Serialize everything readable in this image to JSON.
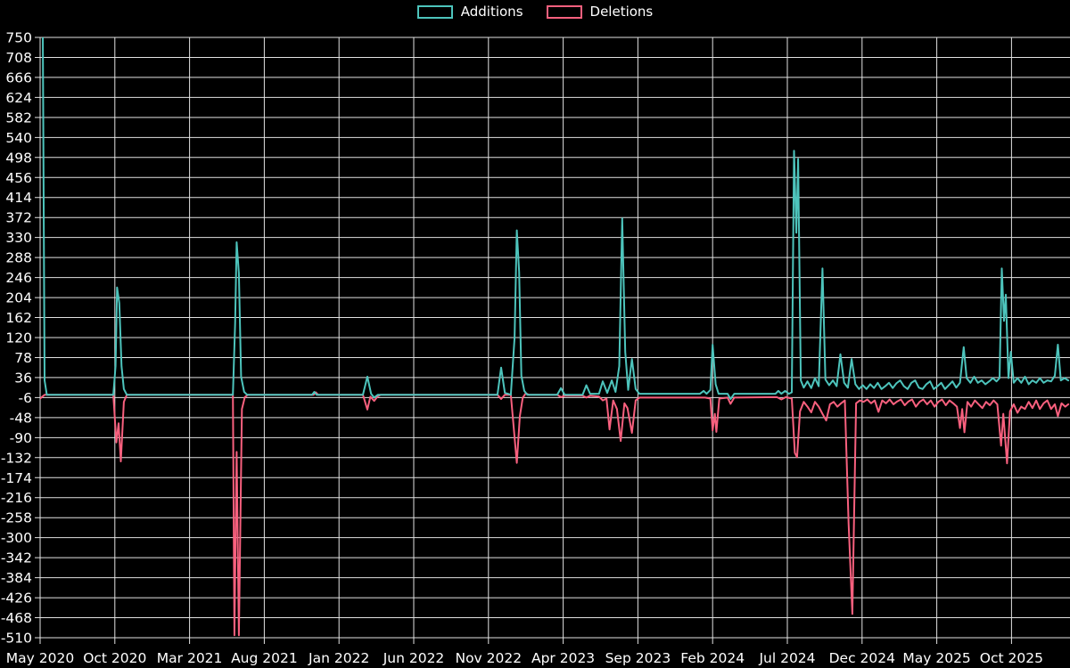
{
  "legend": {
    "items": [
      {
        "label": "Additions",
        "color": "#4dc4bc"
      },
      {
        "label": "Deletions",
        "color": "#f8607e"
      }
    ]
  },
  "chart_data": {
    "type": "line",
    "title": "",
    "xlabel": "",
    "ylabel": "",
    "x_unit": "months since May 2020 (weekly code additions/deletions)",
    "ylim": [
      -510,
      750
    ],
    "xlim_months": [
      0,
      68.9
    ],
    "grid": true,
    "legend_position": "top-center",
    "background_color": "#000000",
    "grid_color": "#e2e2e2",
    "text_color": "#ffffff",
    "y_ticks": [
      750,
      708,
      666,
      624,
      582,
      540,
      498,
      456,
      414,
      372,
      330,
      288,
      246,
      204,
      162,
      120,
      78,
      36,
      -6,
      -48,
      -90,
      -132,
      -174,
      -216,
      -258,
      -300,
      -342,
      -384,
      -426,
      -468,
      -510
    ],
    "x_ticks": [
      {
        "month": 0,
        "label": "May 2020"
      },
      {
        "month": 5,
        "label": "Oct 2020"
      },
      {
        "month": 10,
        "label": "Mar 2021"
      },
      {
        "month": 15,
        "label": "Aug 2021"
      },
      {
        "month": 20,
        "label": "Jan 2022"
      },
      {
        "month": 25,
        "label": "Jun 2022"
      },
      {
        "month": 30,
        "label": "Nov 2022"
      },
      {
        "month": 35,
        "label": "Apr 2023"
      },
      {
        "month": 40,
        "label": "Sep 2023"
      },
      {
        "month": 45,
        "label": "Feb 2024"
      },
      {
        "month": 50,
        "label": "Jul 2024"
      },
      {
        "month": 55,
        "label": "Dec 2024"
      },
      {
        "month": 60,
        "label": "May 2025"
      },
      {
        "month": 65,
        "label": "Oct 2025"
      }
    ],
    "series": [
      {
        "name": "Additions",
        "color": "#4dc4bc",
        "points": [
          [
            0,
            762
          ],
          [
            0.18,
            762
          ],
          [
            0.3,
            30
          ],
          [
            0.45,
            0
          ],
          [
            4.9,
            0
          ],
          [
            5.05,
            60
          ],
          [
            5.15,
            225
          ],
          [
            5.3,
            192
          ],
          [
            5.45,
            60
          ],
          [
            5.6,
            12
          ],
          [
            5.8,
            0
          ],
          [
            12.9,
            0
          ],
          [
            13.05,
            150
          ],
          [
            13.15,
            320
          ],
          [
            13.3,
            255
          ],
          [
            13.45,
            38
          ],
          [
            13.65,
            6
          ],
          [
            13.85,
            0
          ],
          [
            18.2,
            0
          ],
          [
            18.35,
            6
          ],
          [
            18.5,
            0
          ],
          [
            21.6,
            0
          ],
          [
            21.9,
            38
          ],
          [
            22.15,
            2
          ],
          [
            22.35,
            -6
          ],
          [
            22.6,
            0
          ],
          [
            30.6,
            0
          ],
          [
            30.85,
            57
          ],
          [
            31.1,
            4
          ],
          [
            31.5,
            0
          ],
          [
            31.75,
            120
          ],
          [
            31.9,
            345
          ],
          [
            32.05,
            258
          ],
          [
            32.2,
            40
          ],
          [
            32.4,
            8
          ],
          [
            32.6,
            0
          ],
          [
            34.6,
            0
          ],
          [
            34.85,
            14
          ],
          [
            35.1,
            0
          ],
          [
            36.3,
            0
          ],
          [
            36.55,
            20
          ],
          [
            36.8,
            2
          ],
          [
            37.4,
            2
          ],
          [
            37.65,
            28
          ],
          [
            37.95,
            4
          ],
          [
            38.25,
            30
          ],
          [
            38.5,
            6
          ],
          [
            38.75,
            60
          ],
          [
            38.95,
            370
          ],
          [
            39.15,
            90
          ],
          [
            39.35,
            10
          ],
          [
            39.6,
            75
          ],
          [
            39.85,
            12
          ],
          [
            40.1,
            2
          ],
          [
            44.15,
            2
          ],
          [
            44.4,
            8
          ],
          [
            44.6,
            2
          ],
          [
            44.85,
            10
          ],
          [
            45.0,
            105
          ],
          [
            45.2,
            22
          ],
          [
            45.4,
            2
          ],
          [
            46.0,
            2
          ],
          [
            46.2,
            -9
          ],
          [
            46.45,
            2
          ],
          [
            49.2,
            2
          ],
          [
            49.4,
            8
          ],
          [
            49.6,
            2
          ],
          [
            49.85,
            8
          ],
          [
            50.1,
            2
          ],
          [
            50.3,
            5
          ],
          [
            50.45,
            512
          ],
          [
            50.6,
            340
          ],
          [
            50.72,
            495
          ],
          [
            50.9,
            30
          ],
          [
            51.1,
            15
          ],
          [
            51.35,
            28
          ],
          [
            51.6,
            14
          ],
          [
            51.85,
            35
          ],
          [
            52.1,
            18
          ],
          [
            52.35,
            265
          ],
          [
            52.55,
            32
          ],
          [
            52.8,
            20
          ],
          [
            53.05,
            30
          ],
          [
            53.3,
            18
          ],
          [
            53.55,
            85
          ],
          [
            53.8,
            25
          ],
          [
            54.05,
            15
          ],
          [
            54.3,
            75
          ],
          [
            54.55,
            22
          ],
          [
            54.8,
            12
          ],
          [
            55.05,
            20
          ],
          [
            55.3,
            12
          ],
          [
            55.55,
            22
          ],
          [
            55.8,
            14
          ],
          [
            56.05,
            25
          ],
          [
            56.3,
            12
          ],
          [
            56.55,
            18
          ],
          [
            56.8,
            25
          ],
          [
            57.05,
            14
          ],
          [
            57.3,
            24
          ],
          [
            57.55,
            30
          ],
          [
            57.8,
            18
          ],
          [
            58.05,
            12
          ],
          [
            58.3,
            25
          ],
          [
            58.55,
            30
          ],
          [
            58.8,
            15
          ],
          [
            59.05,
            12
          ],
          [
            59.3,
            22
          ],
          [
            59.55,
            28
          ],
          [
            59.8,
            12
          ],
          [
            60.05,
            18
          ],
          [
            60.3,
            25
          ],
          [
            60.55,
            12
          ],
          [
            60.8,
            20
          ],
          [
            61.05,
            28
          ],
          [
            61.3,
            15
          ],
          [
            61.55,
            25
          ],
          [
            61.8,
            100
          ],
          [
            62.0,
            35
          ],
          [
            62.25,
            25
          ],
          [
            62.5,
            38
          ],
          [
            62.75,
            25
          ],
          [
            63.0,
            30
          ],
          [
            63.25,
            22
          ],
          [
            63.5,
            28
          ],
          [
            63.75,
            35
          ],
          [
            64.0,
            28
          ],
          [
            64.2,
            35
          ],
          [
            64.35,
            265
          ],
          [
            64.5,
            155
          ],
          [
            64.62,
            210
          ],
          [
            64.8,
            35
          ],
          [
            64.95,
            90
          ],
          [
            65.15,
            25
          ],
          [
            65.4,
            35
          ],
          [
            65.65,
            25
          ],
          [
            65.9,
            38
          ],
          [
            66.15,
            22
          ],
          [
            66.4,
            30
          ],
          [
            66.65,
            25
          ],
          [
            66.9,
            35
          ],
          [
            67.15,
            25
          ],
          [
            67.4,
            30
          ],
          [
            67.65,
            28
          ],
          [
            67.9,
            40
          ],
          [
            68.1,
            105
          ],
          [
            68.3,
            30
          ],
          [
            68.55,
            35
          ],
          [
            68.8,
            30
          ]
        ]
      },
      {
        "name": "Deletions",
        "color": "#f8607e",
        "points": [
          [
            0,
            -8
          ],
          [
            0.3,
            0
          ],
          [
            4.9,
            0
          ],
          [
            5.1,
            -100
          ],
          [
            5.25,
            -60
          ],
          [
            5.4,
            -140
          ],
          [
            5.6,
            -15
          ],
          [
            5.8,
            0
          ],
          [
            12.9,
            0
          ],
          [
            13.0,
            -505
          ],
          [
            13.15,
            -120
          ],
          [
            13.3,
            -505
          ],
          [
            13.5,
            -30
          ],
          [
            13.7,
            -5
          ],
          [
            13.9,
            0
          ],
          [
            18.3,
            0
          ],
          [
            18.45,
            5
          ],
          [
            18.6,
            0
          ],
          [
            21.6,
            0
          ],
          [
            21.9,
            -31
          ],
          [
            22.1,
            -4
          ],
          [
            22.35,
            -13
          ],
          [
            22.6,
            -3
          ],
          [
            22.8,
            0
          ],
          [
            30.6,
            0
          ],
          [
            30.85,
            -9
          ],
          [
            31.1,
            0
          ],
          [
            31.5,
            0
          ],
          [
            31.9,
            -143
          ],
          [
            32.1,
            -45
          ],
          [
            32.3,
            -6
          ],
          [
            32.5,
            3
          ],
          [
            32.7,
            0
          ],
          [
            34.6,
            0
          ],
          [
            34.85,
            -5
          ],
          [
            35.1,
            -2
          ],
          [
            36.3,
            -2
          ],
          [
            36.55,
            -6
          ],
          [
            36.8,
            -2
          ],
          [
            37.4,
            -4
          ],
          [
            37.65,
            -12
          ],
          [
            37.9,
            -8
          ],
          [
            38.1,
            -73
          ],
          [
            38.35,
            -12
          ],
          [
            38.6,
            -30
          ],
          [
            38.85,
            -97
          ],
          [
            39.1,
            -18
          ],
          [
            39.3,
            -28
          ],
          [
            39.6,
            -80
          ],
          [
            39.85,
            -12
          ],
          [
            40.1,
            -6
          ],
          [
            44.5,
            -6
          ],
          [
            44.85,
            -8
          ],
          [
            45.0,
            -75
          ],
          [
            45.15,
            -40
          ],
          [
            45.25,
            -78
          ],
          [
            45.45,
            -8
          ],
          [
            46.0,
            -6
          ],
          [
            46.2,
            -19
          ],
          [
            46.45,
            -6
          ],
          [
            49.3,
            -5
          ],
          [
            49.6,
            -10
          ],
          [
            49.9,
            -5
          ],
          [
            50.3,
            -8
          ],
          [
            50.5,
            -122
          ],
          [
            50.65,
            -131
          ],
          [
            50.85,
            -35
          ],
          [
            51.1,
            -15
          ],
          [
            51.35,
            -25
          ],
          [
            51.6,
            -37
          ],
          [
            51.85,
            -15
          ],
          [
            52.1,
            -25
          ],
          [
            52.35,
            -40
          ],
          [
            52.6,
            -54
          ],
          [
            52.85,
            -20
          ],
          [
            53.1,
            -15
          ],
          [
            53.35,
            -25
          ],
          [
            53.6,
            -18
          ],
          [
            53.85,
            -12
          ],
          [
            54.1,
            -270
          ],
          [
            54.35,
            -460
          ],
          [
            54.6,
            -18
          ],
          [
            54.85,
            -12
          ],
          [
            55.1,
            -15
          ],
          [
            55.35,
            -10
          ],
          [
            55.6,
            -18
          ],
          [
            55.85,
            -12
          ],
          [
            56.1,
            -36
          ],
          [
            56.35,
            -12
          ],
          [
            56.6,
            -18
          ],
          [
            56.85,
            -10
          ],
          [
            57.1,
            -20
          ],
          [
            57.35,
            -14
          ],
          [
            57.6,
            -10
          ],
          [
            57.85,
            -22
          ],
          [
            58.1,
            -14
          ],
          [
            58.35,
            -10
          ],
          [
            58.6,
            -25
          ],
          [
            58.85,
            -15
          ],
          [
            59.1,
            -10
          ],
          [
            59.35,
            -20
          ],
          [
            59.6,
            -12
          ],
          [
            59.85,
            -25
          ],
          [
            60.1,
            -15
          ],
          [
            60.35,
            -10
          ],
          [
            60.6,
            -22
          ],
          [
            60.85,
            -12
          ],
          [
            61.1,
            -18
          ],
          [
            61.35,
            -25
          ],
          [
            61.55,
            -70
          ],
          [
            61.7,
            -30
          ],
          [
            61.85,
            -79
          ],
          [
            62.05,
            -15
          ],
          [
            62.3,
            -25
          ],
          [
            62.55,
            -12
          ],
          [
            62.8,
            -20
          ],
          [
            63.05,
            -28
          ],
          [
            63.3,
            -15
          ],
          [
            63.55,
            -22
          ],
          [
            63.8,
            -12
          ],
          [
            64.05,
            -20
          ],
          [
            64.3,
            -107
          ],
          [
            64.45,
            -40
          ],
          [
            64.7,
            -144
          ],
          [
            64.9,
            -35
          ],
          [
            65.15,
            -20
          ],
          [
            65.4,
            -38
          ],
          [
            65.65,
            -25
          ],
          [
            65.9,
            -30
          ],
          [
            66.15,
            -15
          ],
          [
            66.4,
            -28
          ],
          [
            66.65,
            -12
          ],
          [
            66.9,
            -30
          ],
          [
            67.15,
            -18
          ],
          [
            67.4,
            -12
          ],
          [
            67.65,
            -30
          ],
          [
            67.9,
            -20
          ],
          [
            68.1,
            -45
          ],
          [
            68.35,
            -18
          ],
          [
            68.6,
            -25
          ],
          [
            68.8,
            -20
          ]
        ]
      }
    ]
  }
}
